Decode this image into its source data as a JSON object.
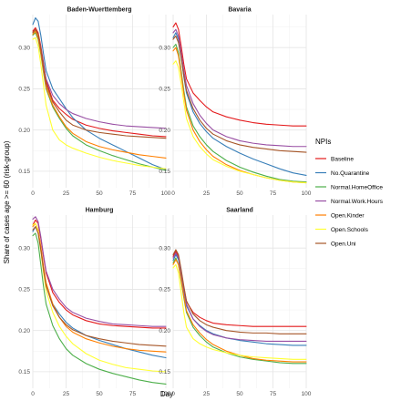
{
  "chart_data": {
    "type": "line",
    "xlabel": "Day",
    "ylabel": "Share of cases age >= 60 (risk-group)",
    "legend_title": "NPIs",
    "legend_position": "right",
    "grid": true,
    "xlim": [
      0,
      100
    ],
    "ylim": [
      0.13,
      0.34
    ],
    "x_ticks": [
      0,
      25,
      50,
      75,
      100
    ],
    "y_ticks": [
      0.15,
      0.2,
      0.25,
      0.3
    ],
    "x_tick_labels": [
      "0",
      "25",
      "50",
      "75",
      "100"
    ],
    "y_tick_labels": [
      "0.15",
      "0.20",
      "0.25",
      "0.30"
    ],
    "series_meta": [
      {
        "name": "Baseline",
        "color": "#E41A1C"
      },
      {
        "name": "No.Quarantine",
        "color": "#377EB8"
      },
      {
        "name": "Normal.HomeOffice",
        "color": "#4DAF4A"
      },
      {
        "name": "Normal.Work.Hours",
        "color": "#984EA3"
      },
      {
        "name": "Open.Kinder",
        "color": "#FF7F00"
      },
      {
        "name": "Open.Schools",
        "color": "#FFFF33"
      },
      {
        "name": "Open.Uni",
        "color": "#A65628"
      }
    ],
    "x": [
      0,
      2,
      4,
      6,
      8,
      10,
      15,
      20,
      25,
      30,
      40,
      50,
      60,
      70,
      80,
      90,
      100
    ],
    "panels": [
      {
        "title": "Baden-Wuerttemberg",
        "series": [
          {
            "name": "Baseline",
            "values": [
              0.32,
              0.324,
              0.318,
              0.302,
              0.282,
              0.26,
              0.236,
              0.226,
              0.219,
              0.213,
              0.206,
              0.202,
              0.199,
              0.197,
              0.195,
              0.193,
              0.192
            ]
          },
          {
            "name": "No.Quarantine",
            "values": [
              0.328,
              0.336,
              0.332,
              0.315,
              0.293,
              0.272,
              0.25,
              0.238,
              0.226,
              0.215,
              0.2,
              0.19,
              0.182,
              0.174,
              0.166,
              0.158,
              0.152
            ]
          },
          {
            "name": "Normal.HomeOffice",
            "values": [
              0.315,
              0.318,
              0.31,
              0.292,
              0.27,
              0.25,
              0.228,
              0.214,
              0.202,
              0.193,
              0.182,
              0.175,
              0.169,
              0.164,
              0.159,
              0.155,
              0.151
            ]
          },
          {
            "name": "Normal.Work.Hours",
            "values": [
              0.318,
              0.322,
              0.316,
              0.3,
              0.28,
              0.262,
              0.242,
              0.232,
              0.225,
              0.22,
              0.214,
              0.21,
              0.207,
              0.205,
              0.204,
              0.203,
              0.202
            ]
          },
          {
            "name": "Open.Kinder",
            "values": [
              0.316,
              0.32,
              0.312,
              0.294,
              0.272,
              0.252,
              0.23,
              0.216,
              0.204,
              0.196,
              0.186,
              0.18,
              0.176,
              0.173,
              0.17,
              0.168,
              0.166
            ]
          },
          {
            "name": "Open.Schools",
            "values": [
              0.31,
              0.312,
              0.302,
              0.28,
              0.255,
              0.23,
              0.2,
              0.188,
              0.182,
              0.178,
              0.172,
              0.167,
              0.163,
              0.16,
              0.157,
              0.155,
              0.153
            ]
          },
          {
            "name": "Open.Uni",
            "values": [
              0.318,
              0.322,
              0.316,
              0.298,
              0.276,
              0.256,
              0.234,
              0.222,
              0.212,
              0.206,
              0.2,
              0.197,
              0.195,
              0.193,
              0.192,
              0.191,
              0.19
            ]
          }
        ]
      },
      {
        "title": "Bavaria",
        "series": [
          {
            "name": "Baseline",
            "values": [
              0.325,
              0.33,
              0.322,
              0.302,
              0.28,
              0.262,
              0.245,
              0.236,
              0.228,
              0.222,
              0.216,
              0.212,
              0.209,
              0.207,
              0.206,
              0.205,
              0.205
            ]
          },
          {
            "name": "No.Quarantine",
            "values": [
              0.312,
              0.318,
              0.31,
              0.29,
              0.265,
              0.245,
              0.222,
              0.208,
              0.198,
              0.19,
              0.18,
              0.172,
              0.165,
              0.159,
              0.153,
              0.148,
              0.145
            ]
          },
          {
            "name": "Normal.HomeOffice",
            "values": [
              0.3,
              0.304,
              0.294,
              0.272,
              0.248,
              0.228,
              0.205,
              0.192,
              0.182,
              0.174,
              0.163,
              0.155,
              0.149,
              0.144,
              0.14,
              0.138,
              0.137
            ]
          },
          {
            "name": "Normal.Work.Hours",
            "values": [
              0.318,
              0.322,
              0.314,
              0.294,
              0.272,
              0.254,
              0.232,
              0.218,
              0.208,
              0.2,
              0.192,
              0.187,
              0.184,
              0.182,
              0.181,
              0.18,
              0.18
            ]
          },
          {
            "name": "Open.Kinder",
            "values": [
              0.296,
              0.3,
              0.29,
              0.268,
              0.244,
              0.224,
              0.2,
              0.186,
              0.176,
              0.168,
              0.158,
              0.151,
              0.146,
              0.142,
              0.139,
              0.137,
              0.136
            ]
          },
          {
            "name": "Open.Schools",
            "values": [
              0.28,
              0.284,
              0.276,
              0.256,
              0.234,
              0.214,
              0.192,
              0.18,
              0.171,
              0.164,
              0.156,
              0.15,
              0.146,
              0.142,
              0.139,
              0.137,
              0.136
            ]
          },
          {
            "name": "Open.Uni",
            "values": [
              0.31,
              0.314,
              0.306,
              0.288,
              0.266,
              0.248,
              0.226,
              0.212,
              0.202,
              0.195,
              0.187,
              0.182,
              0.179,
              0.177,
              0.175,
              0.174,
              0.173
            ]
          }
        ]
      },
      {
        "title": "Hamburg",
        "series": [
          {
            "name": "Baseline",
            "values": [
              0.328,
              0.334,
              0.33,
              0.312,
              0.29,
              0.27,
              0.246,
              0.234,
              0.225,
              0.219,
              0.212,
              0.208,
              0.206,
              0.205,
              0.204,
              0.203,
              0.203
            ]
          },
          {
            "name": "No.Quarantine",
            "values": [
              0.32,
              0.326,
              0.32,
              0.3,
              0.276,
              0.256,
              0.232,
              0.22,
              0.21,
              0.203,
              0.194,
              0.188,
              0.183,
              0.178,
              0.174,
              0.17,
              0.167
            ]
          },
          {
            "name": "Normal.HomeOffice",
            "values": [
              0.315,
              0.318,
              0.306,
              0.28,
              0.254,
              0.232,
              0.206,
              0.19,
              0.178,
              0.17,
              0.16,
              0.153,
              0.148,
              0.144,
              0.14,
              0.137,
              0.135
            ]
          },
          {
            "name": "Normal.Work.Hours",
            "values": [
              0.335,
              0.338,
              0.332,
              0.314,
              0.292,
              0.272,
              0.25,
              0.238,
              0.228,
              0.222,
              0.215,
              0.211,
              0.208,
              0.207,
              0.206,
              0.205,
              0.205
            ]
          },
          {
            "name": "Open.Kinder",
            "values": [
              0.326,
              0.33,
              0.322,
              0.302,
              0.278,
              0.258,
              0.232,
              0.216,
              0.205,
              0.198,
              0.19,
              0.185,
              0.181,
              0.178,
              0.176,
              0.175,
              0.174
            ]
          },
          {
            "name": "Open.Schools",
            "values": [
              0.328,
              0.33,
              0.32,
              0.296,
              0.27,
              0.248,
              0.222,
              0.205,
              0.193,
              0.184,
              0.172,
              0.164,
              0.159,
              0.155,
              0.153,
              0.151,
              0.15
            ]
          },
          {
            "name": "Open.Uni",
            "values": [
              0.322,
              0.326,
              0.318,
              0.298,
              0.274,
              0.254,
              0.23,
              0.216,
              0.207,
              0.201,
              0.194,
              0.19,
              0.187,
              0.185,
              0.183,
              0.182,
              0.181
            ]
          }
        ]
      },
      {
        "title": "Saarland",
        "series": [
          {
            "name": "Baseline",
            "values": [
              0.29,
              0.296,
              0.29,
              0.272,
              0.252,
              0.235,
              0.222,
              0.216,
              0.212,
              0.209,
              0.207,
              0.206,
              0.205,
              0.205,
              0.205,
              0.205,
              0.205
            ]
          },
          {
            "name": "No.Quarantine",
            "values": [
              0.285,
              0.292,
              0.286,
              0.268,
              0.248,
              0.23,
              0.214,
              0.206,
              0.2,
              0.196,
              0.191,
              0.188,
              0.186,
              0.184,
              0.183,
              0.182,
              0.182
            ]
          },
          {
            "name": "Normal.HomeOffice",
            "values": [
              0.282,
              0.288,
              0.28,
              0.26,
              0.24,
              0.222,
              0.204,
              0.194,
              0.186,
              0.18,
              0.173,
              0.168,
              0.165,
              0.163,
              0.161,
              0.16,
              0.16
            ]
          },
          {
            "name": "Normal.Work.Hours",
            "values": [
              0.288,
              0.294,
              0.288,
              0.27,
              0.25,
              0.232,
              0.214,
              0.205,
              0.199,
              0.195,
              0.191,
              0.189,
              0.188,
              0.187,
              0.187,
              0.187,
              0.187
            ]
          },
          {
            "name": "Open.Kinder",
            "values": [
              0.28,
              0.286,
              0.28,
              0.262,
              0.242,
              0.224,
              0.207,
              0.197,
              0.189,
              0.183,
              0.175,
              0.17,
              0.166,
              0.164,
              0.163,
              0.162,
              0.162
            ]
          },
          {
            "name": "Open.Schools",
            "values": [
              0.276,
              0.28,
              0.27,
              0.246,
              0.222,
              0.204,
              0.19,
              0.184,
              0.18,
              0.177,
              0.173,
              0.17,
              0.168,
              0.167,
              0.166,
              0.165,
              0.165
            ]
          },
          {
            "name": "Open.Uni",
            "values": [
              0.292,
              0.298,
              0.292,
              0.274,
              0.254,
              0.236,
              0.22,
              0.212,
              0.207,
              0.204,
              0.2,
              0.198,
              0.197,
              0.197,
              0.196,
              0.196,
              0.196
            ]
          }
        ]
      }
    ]
  }
}
